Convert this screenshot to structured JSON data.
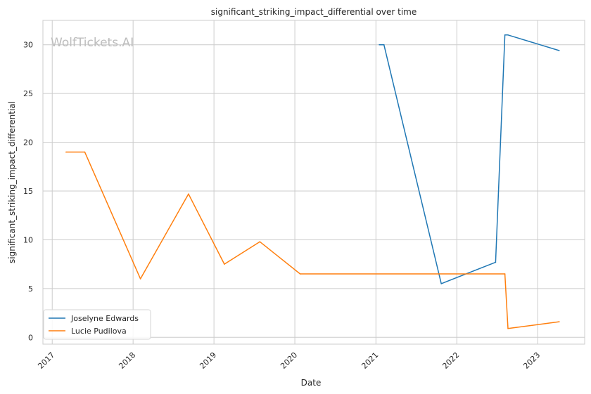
{
  "chart_data": {
    "type": "line",
    "title": "significant_striking_impact_differential over time",
    "xlabel": "Date",
    "ylabel": "significant_striking_impact_differential",
    "watermark": "WolfTickets.AI",
    "xlim": [
      "2016-11-20",
      "2023-08-01"
    ],
    "ylim": [
      -0.7,
      32.5
    ],
    "x_ticks": [
      "2017-01-01",
      "2018-01-01",
      "2019-01-01",
      "2020-01-01",
      "2021-01-01",
      "2022-01-01",
      "2023-01-01"
    ],
    "x_tick_labels": [
      "2017",
      "2018",
      "2019",
      "2020",
      "2021",
      "2022",
      "2023"
    ],
    "y_ticks": [
      0,
      5,
      10,
      15,
      20,
      25,
      30
    ],
    "y_tick_labels": [
      "0",
      "5",
      "10",
      "15",
      "20",
      "25",
      "30"
    ],
    "grid": true,
    "legend_position": "bottom-left",
    "series": [
      {
        "name": "Joselyne Edwards",
        "color": "#1f77b4",
        "points": [
          {
            "x": "2021-01-16",
            "y": 30.0
          },
          {
            "x": "2021-02-06",
            "y": 30.0
          },
          {
            "x": "2021-10-23",
            "y": 5.5
          },
          {
            "x": "2022-06-25",
            "y": 7.7
          },
          {
            "x": "2022-08-06",
            "y": 31.0
          },
          {
            "x": "2022-08-20",
            "y": 31.0
          },
          {
            "x": "2023-04-08",
            "y": 29.4
          }
        ]
      },
      {
        "name": "Lucie Pudilova",
        "color": "#ff7f0e",
        "points": [
          {
            "x": "2017-03-04",
            "y": 19.0
          },
          {
            "x": "2017-05-28",
            "y": 19.0
          },
          {
            "x": "2018-02-03",
            "y": 6.0
          },
          {
            "x": "2018-09-08",
            "y": 14.7
          },
          {
            "x": "2019-02-17",
            "y": 7.5
          },
          {
            "x": "2019-07-27",
            "y": 9.8
          },
          {
            "x": "2020-01-25",
            "y": 6.5
          },
          {
            "x": "2022-08-06",
            "y": 6.5
          },
          {
            "x": "2022-08-20",
            "y": 0.9
          },
          {
            "x": "2023-04-08",
            "y": 1.6
          }
        ]
      }
    ]
  }
}
